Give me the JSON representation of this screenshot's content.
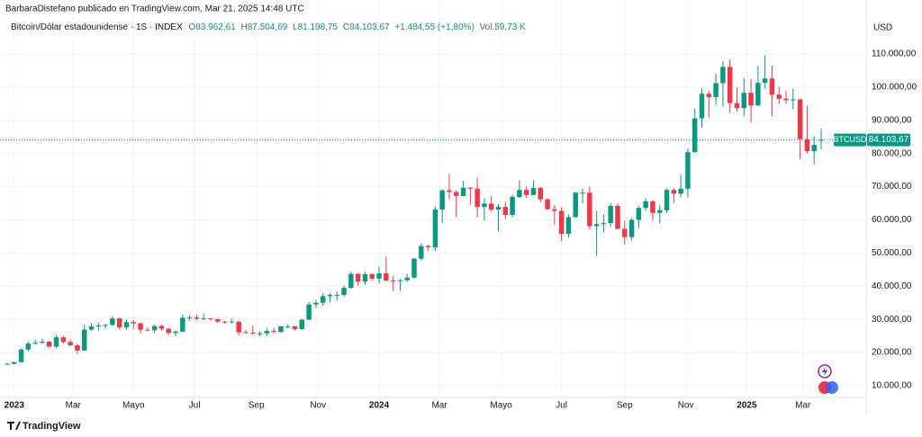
{
  "header": {
    "title": "BarbaraDistefano publicado en TradingView.com, Mar 21, 2025 14:48 UTC",
    "symbol": "Bitcoin/Dólar estadounidense · 1S · INDEX",
    "ohlc": [
      {
        "label": "O",
        "value": "83.962,61"
      },
      {
        "label": "H",
        "value": "87.504,69"
      },
      {
        "label": "L",
        "value": "81.198,75"
      },
      {
        "label": "C",
        "value": "84.103,67"
      }
    ],
    "change": "+1.484,55 (+1,80%)",
    "volume_label": "Vol.",
    "volume": "59,73 K",
    "currency": "USD",
    "logo": "TradingView"
  },
  "chart_data": {
    "type": "candlestick",
    "up_color": "#089981",
    "down_color": "#f23645",
    "grid": true,
    "price_tag": {
      "name": "BTCUSD",
      "label": "84.103,67"
    },
    "ylim": [
      1600,
      120300
    ],
    "yticks": [
      {
        "value": 10000,
        "label": "10.000,00"
      },
      {
        "value": 20000,
        "label": "20.000,00"
      },
      {
        "value": 30000,
        "label": "30.000,00"
      },
      {
        "value": 40000,
        "label": "40.000,00"
      },
      {
        "value": 50000,
        "label": "50.000,00"
      },
      {
        "value": 60000,
        "label": "60.000,00"
      },
      {
        "value": 70000,
        "label": "70.000,00"
      },
      {
        "value": 80000,
        "label": "80.000,00"
      },
      {
        "value": 90000,
        "label": "90.000,00"
      },
      {
        "value": 100000,
        "label": "100.000,00"
      },
      {
        "value": 110000,
        "label": "110.000,00"
      }
    ],
    "xticks": [
      {
        "value": 1,
        "label": "2023"
      },
      {
        "value": 9.4,
        "label": "Mar"
      },
      {
        "value": 18,
        "label": "Mayo"
      },
      {
        "value": 26.7,
        "label": "Jul"
      },
      {
        "value": 35.5,
        "label": "Sep"
      },
      {
        "value": 44.3,
        "label": "Nov"
      },
      {
        "value": 53,
        "label": "2024"
      },
      {
        "value": 61.6,
        "label": "Mar"
      },
      {
        "value": 70.4,
        "label": "Mayo"
      },
      {
        "value": 79,
        "label": "Jul"
      },
      {
        "value": 88,
        "label": "Sep"
      },
      {
        "value": 96.7,
        "label": "Nov"
      },
      {
        "value": 105.4,
        "label": "2025"
      },
      {
        "value": 113.4,
        "label": "Mar"
      }
    ],
    "open": [
      16500,
      16600,
      17100,
      20900,
      22700,
      23000,
      23300,
      21800,
      24600,
      23200,
      22200,
      20600,
      26900,
      27900,
      28200,
      28300,
      30300,
      27600,
      29200,
      28800,
      26900,
      26700,
      28000,
      27200,
      25900,
      26300,
      30500,
      30600,
      30200,
      30300,
      30100,
      29300,
      29100,
      29300,
      26100,
      26000,
      25800,
      25800,
      26500,
      26200,
      27900,
      27900,
      27100,
      29900,
      34500,
      35000,
      37000,
      37400,
      37400,
      39500,
      43700,
      41400,
      43600,
      42300,
      43900,
      41700,
      41600,
      41800,
      42600,
      48300,
      52100,
      51700,
      63100,
      68900,
      68400,
      67200,
      69700,
      69400,
      63900,
      64900,
      63100,
      63900,
      61500,
      66900,
      69000,
      67500,
      69600,
      66200,
      63200,
      62700,
      55800,
      60800,
      68200,
      68200,
      58100,
      58700,
      59000,
      64200,
      57300,
      54800,
      60000,
      63600,
      65600,
      62100,
      62900,
      69000,
      67900,
      69400,
      80400,
      90600,
      98000,
      97000,
      101200,
      106100,
      95200,
      93700,
      98300,
      94500,
      101300,
      102600,
      97700,
      96500,
      96100,
      96300,
      84300,
      80700,
      83962.61
    ],
    "high": [
      16900,
      17300,
      21300,
      23300,
      23900,
      24200,
      23400,
      25200,
      25000,
      23900,
      22600,
      28400,
      28900,
      29100,
      28800,
      31000,
      30500,
      30000,
      29800,
      29000,
      27600,
      28300,
      28400,
      27400,
      26800,
      31400,
      31300,
      31400,
      31800,
      30400,
      30100,
      29500,
      30200,
      29600,
      26800,
      28100,
      26400,
      27500,
      27500,
      28000,
      28600,
      28000,
      30200,
      35200,
      35900,
      38000,
      37900,
      38400,
      40200,
      44400,
      44000,
      44400,
      43800,
      45900,
      49000,
      43000,
      42200,
      43800,
      48600,
      52900,
      52500,
      64000,
      69200,
      73800,
      68900,
      71800,
      69900,
      72800,
      66600,
      67200,
      64700,
      65400,
      67500,
      71900,
      70000,
      71900,
      70000,
      66500,
      64400,
      63800,
      61600,
      68400,
      69400,
      70000,
      62700,
      61800,
      65000,
      64900,
      59800,
      60600,
      64100,
      66500,
      66000,
      64500,
      69400,
      69500,
      73600,
      81500,
      93500,
      99600,
      98900,
      104100,
      107800,
      108300,
      99900,
      102700,
      102500,
      106400,
      109600,
      106500,
      100100,
      98800,
      99500,
      96500,
      94400,
      85300,
      87504.69
    ],
    "low": [
      16300,
      16500,
      17100,
      20400,
      22300,
      22600,
      21400,
      21400,
      22700,
      21900,
      19600,
      20500,
      26600,
      26600,
      27200,
      28000,
      27100,
      26900,
      27100,
      25800,
      26400,
      25900,
      26600,
      25400,
      24800,
      26300,
      29600,
      29800,
      29900,
      29600,
      28900,
      28700,
      28800,
      25200,
      25800,
      25400,
      24900,
      24900,
      26000,
      26000,
      27200,
      26600,
      26800,
      29700,
      33400,
      34100,
      35000,
      35700,
      36800,
      39300,
      40200,
      40500,
      41500,
      40800,
      41500,
      38600,
      38500,
      41200,
      42200,
      47700,
      50600,
      50600,
      59000,
      66200,
      60800,
      67200,
      64500,
      60700,
      59700,
      62400,
      56600,
      60200,
      60700,
      66600,
      66600,
      67400,
      65300,
      63100,
      58400,
      53500,
      54600,
      60600,
      65000,
      57100,
      49100,
      56200,
      57800,
      57200,
      52600,
      53700,
      57500,
      62700,
      59800,
      58900,
      62100,
      65100,
      66800,
      66800,
      80200,
      87700,
      90800,
      94700,
      94200,
      92200,
      92600,
      91200,
      89300,
      94300,
      99500,
      91200,
      94900,
      94900,
      93400,
      78200,
      80000,
      76600,
      81198.75
    ],
    "close": [
      16600,
      17100,
      20900,
      22700,
      23000,
      23300,
      21800,
      24600,
      23200,
      22200,
      20600,
      26900,
      27900,
      28200,
      28300,
      30300,
      27600,
      29200,
      28800,
      26900,
      26700,
      28000,
      27200,
      25900,
      26300,
      30500,
      30600,
      30200,
      30300,
      30100,
      29300,
      29100,
      29300,
      26100,
      26000,
      25800,
      25800,
      26500,
      26200,
      27900,
      27900,
      27100,
      29900,
      34500,
      35000,
      37000,
      37400,
      37400,
      39500,
      43700,
      41400,
      43600,
      42300,
      43900,
      41700,
      41600,
      41800,
      42600,
      48300,
      52100,
      51700,
      63100,
      68900,
      68400,
      67200,
      69700,
      69400,
      63900,
      64900,
      63100,
      63900,
      61500,
      66900,
      69000,
      67500,
      69600,
      66200,
      63200,
      62700,
      55800,
      60800,
      68200,
      68200,
      58100,
      58700,
      59000,
      64200,
      57300,
      54800,
      60000,
      63600,
      65600,
      62100,
      62900,
      69000,
      67900,
      69400,
      80400,
      90600,
      98000,
      97000,
      101200,
      106100,
      95200,
      93700,
      98300,
      94500,
      101300,
      102600,
      97700,
      96500,
      96100,
      96300,
      84300,
      80700,
      82600,
      84103.67
    ]
  }
}
